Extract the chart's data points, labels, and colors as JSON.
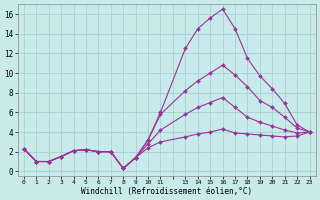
{
  "xlabel": "Windchill (Refroidissement éolien,°C)",
  "background_color": "#c8eaea",
  "grid_color": "#a0cccc",
  "line_color": "#993399",
  "xlim": [
    -0.5,
    23.5
  ],
  "ylim": [
    -0.5,
    17.0
  ],
  "xtick_vals": [
    0,
    1,
    2,
    3,
    4,
    5,
    6,
    7,
    8,
    9,
    10,
    11,
    13,
    14,
    15,
    16,
    17,
    18,
    19,
    20,
    21,
    22,
    23
  ],
  "ytick_vals": [
    0,
    2,
    4,
    6,
    8,
    10,
    12,
    14,
    16
  ],
  "lines": [
    {
      "x": [
        0,
        1,
        2,
        3,
        4,
        5,
        6,
        7,
        8,
        9,
        10,
        11,
        13,
        14,
        15,
        16,
        17,
        18,
        19,
        20,
        21,
        22,
        23
      ],
      "y": [
        2.3,
        1.0,
        1.0,
        1.5,
        2.1,
        2.2,
        2.0,
        2.0,
        0.3,
        1.4,
        3.2,
        6.0,
        12.5,
        14.5,
        15.6,
        16.5,
        14.5,
        11.5,
        9.7,
        8.4,
        6.9,
        4.7,
        4.0
      ]
    },
    {
      "x": [
        0,
        1,
        2,
        3,
        4,
        5,
        6,
        7,
        8,
        9,
        10,
        11,
        13,
        14,
        15,
        16,
        17,
        18,
        19,
        20,
        21,
        22,
        23
      ],
      "y": [
        2.3,
        1.0,
        1.0,
        1.5,
        2.1,
        2.2,
        2.0,
        2.0,
        0.3,
        1.4,
        3.2,
        5.8,
        8.2,
        9.2,
        10.0,
        10.8,
        9.8,
        8.6,
        7.2,
        6.5,
        5.5,
        4.4,
        4.0
      ]
    },
    {
      "x": [
        0,
        1,
        2,
        3,
        4,
        5,
        6,
        7,
        8,
        9,
        10,
        11,
        13,
        14,
        15,
        16,
        17,
        18,
        19,
        20,
        21,
        22,
        23
      ],
      "y": [
        2.3,
        1.0,
        1.0,
        1.5,
        2.1,
        2.2,
        2.0,
        2.0,
        0.3,
        1.4,
        2.8,
        4.2,
        5.8,
        6.5,
        7.0,
        7.5,
        6.5,
        5.5,
        5.0,
        4.6,
        4.2,
        3.9,
        4.0
      ]
    },
    {
      "x": [
        0,
        1,
        2,
        3,
        4,
        5,
        6,
        7,
        8,
        9,
        10,
        11,
        13,
        14,
        15,
        16,
        17,
        18,
        19,
        20,
        21,
        22,
        23
      ],
      "y": [
        2.3,
        1.0,
        1.0,
        1.5,
        2.1,
        2.2,
        2.0,
        2.0,
        0.3,
        1.4,
        2.4,
        3.0,
        3.5,
        3.8,
        4.0,
        4.3,
        3.9,
        3.8,
        3.7,
        3.6,
        3.5,
        3.6,
        4.0
      ]
    }
  ]
}
